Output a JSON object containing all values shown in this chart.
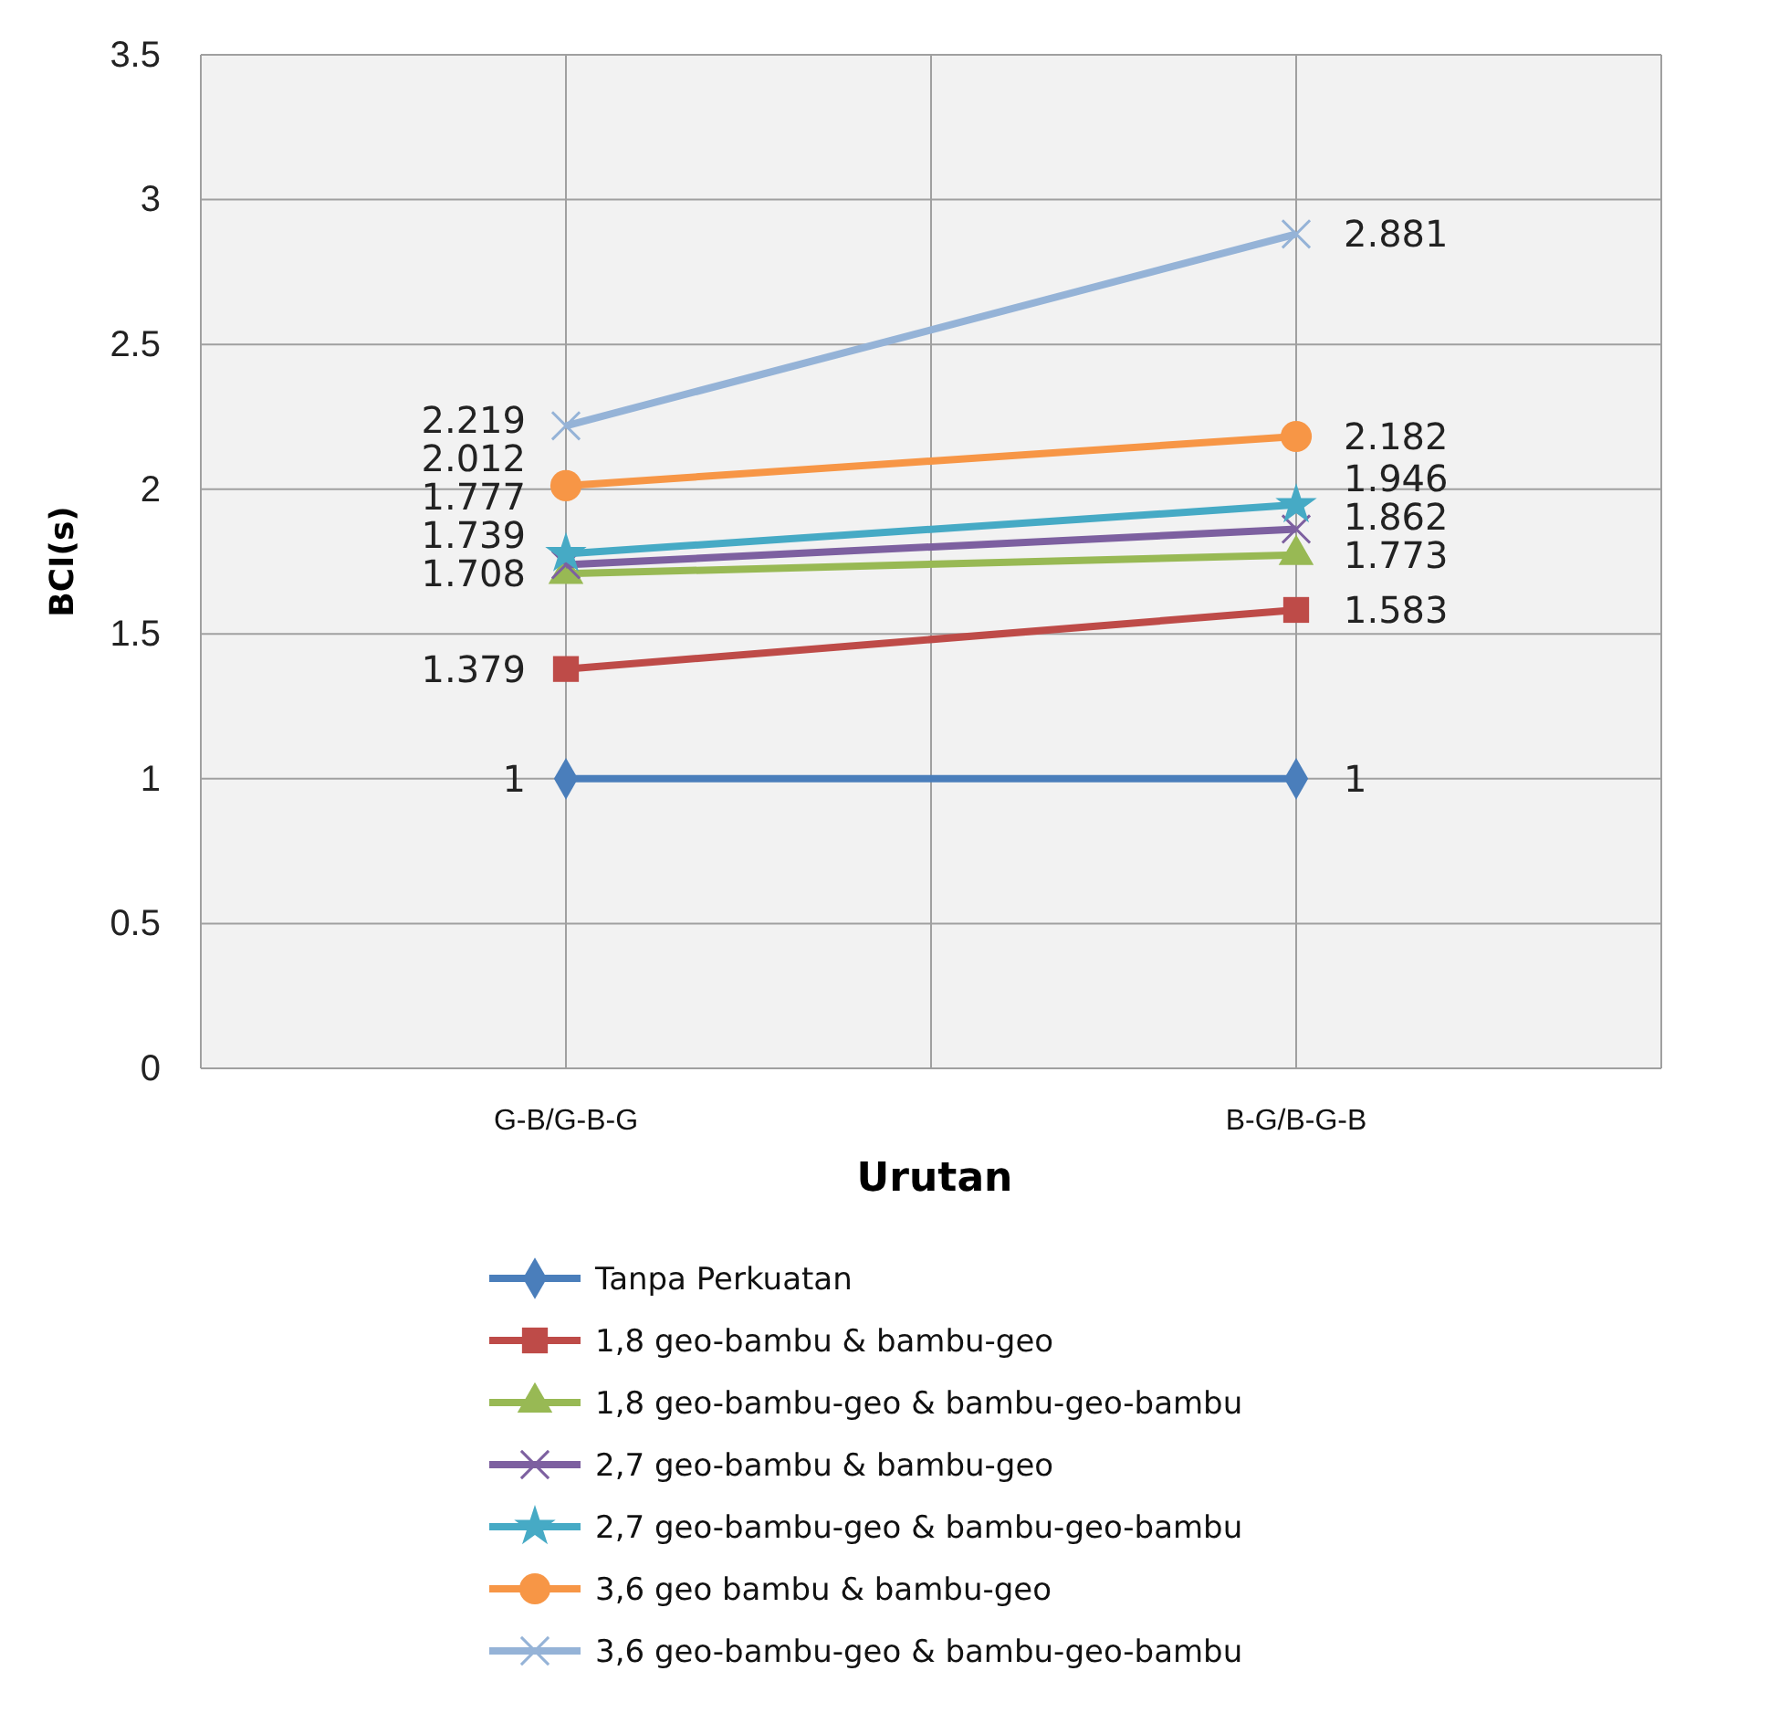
{
  "chart_data": {
    "type": "line",
    "xlabel": "Urutan",
    "ylabel": "BCI(s)",
    "categories": [
      "G-B/G-B-G",
      "B-G/B-G-B"
    ],
    "ylim": [
      0,
      3.5
    ],
    "yticks": [
      0,
      0.5,
      1,
      1.5,
      2,
      2.5,
      3,
      3.5
    ],
    "grid": true,
    "legend": "bottom",
    "data_labels": true,
    "series": [
      {
        "name": "Tanpa Perkuatan",
        "color": "#4a7ebb",
        "marker": "diamond",
        "values": [
          1,
          1
        ]
      },
      {
        "name": "1,8 geo-bambu & bambu-geo",
        "color": "#be4b48",
        "marker": "square",
        "values": [
          1.379,
          1.583
        ]
      },
      {
        "name": "1,8 geo-bambu-geo & bambu-geo-bambu",
        "color": "#98b954",
        "marker": "triangle",
        "values": [
          1.708,
          1.773
        ]
      },
      {
        "name": "2,7 geo-bambu & bambu-geo",
        "color": "#7d60a0",
        "marker": "cross",
        "values": [
          1.739,
          1.862
        ]
      },
      {
        "name": "2,7 geo-bambu-geo & bambu-geo-bambu",
        "color": "#46aac5",
        "marker": "star",
        "values": [
          1.777,
          1.946
        ]
      },
      {
        "name": "3,6 geo bambu & bambu-geo",
        "color": "#f79646",
        "marker": "circle",
        "values": [
          2.012,
          2.182
        ]
      },
      {
        "name": "3,6 geo-bambu-geo & bambu-geo-bambu",
        "color": "#95b3d7",
        "marker": "cross",
        "values": [
          2.219,
          2.881
        ]
      }
    ]
  }
}
